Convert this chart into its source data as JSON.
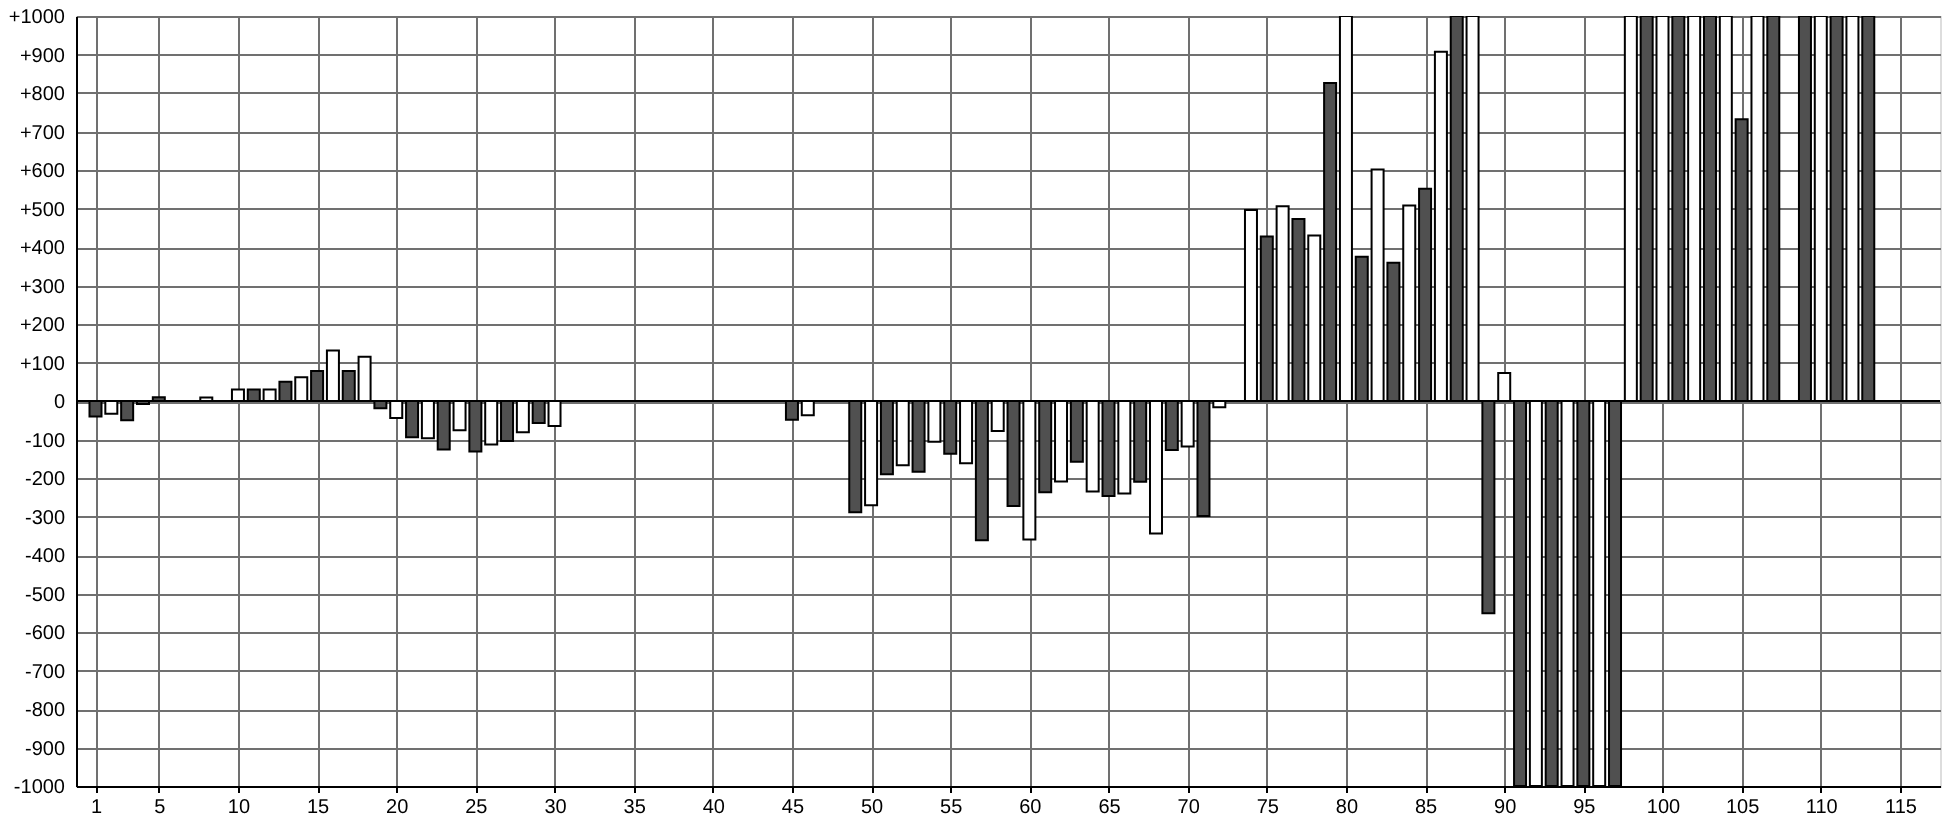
{
  "chart_data": {
    "type": "bar",
    "xlim": [
      0.4,
      116.9
    ],
    "xticks": [
      1,
      5,
      10,
      15,
      20,
      25,
      30,
      35,
      40,
      45,
      50,
      55,
      60,
      65,
      70,
      75,
      80,
      85,
      90,
      95,
      100,
      105,
      110,
      115
    ],
    "ylim": [
      -1000,
      1000
    ],
    "yticks": [
      -1000,
      -900,
      -800,
      -700,
      -600,
      -500,
      -400,
      -300,
      -200,
      -100,
      0,
      {
        "value": 100,
        "label": "+100"
      },
      {
        "value": 200,
        "label": "+200"
      },
      {
        "value": 300,
        "label": "+300"
      },
      {
        "value": 400,
        "label": "+400"
      },
      {
        "value": 500,
        "label": "+500"
      },
      {
        "value": 600,
        "label": "+600"
      },
      {
        "value": 700,
        "label": "+700"
      },
      {
        "value": 800,
        "label": "+800"
      },
      {
        "value": 900,
        "label": "+900"
      },
      {
        "value": 1000,
        "label": "+1000"
      }
    ],
    "grid": true,
    "series": [
      {
        "color": "#505050",
        "x": [
          1,
          3,
          4,
          5,
          11,
          13,
          15,
          17,
          19,
          21,
          23,
          25,
          27,
          29,
          45,
          49,
          51,
          53,
          55,
          57,
          59,
          61,
          63,
          65,
          67,
          69,
          71,
          75,
          77,
          79,
          81,
          83,
          85,
          87,
          89,
          91,
          93,
          95,
          97,
          99,
          101,
          103,
          105,
          107,
          109,
          111,
          113
        ],
        "values": [
          -40,
          -50,
          -8,
          10,
          30,
          50,
          78,
          78,
          -19,
          -94,
          -126,
          -131,
          -104,
          -57,
          -49,
          -289,
          -190,
          -184,
          -137,
          -362,
          -273,
          -237,
          -158,
          -247,
          -210,
          -127,
          -299,
          427,
          473,
          826,
          375,
          359,
          551,
          1000,
          -551,
          -1000,
          -1000,
          -1000,
          -1000,
          1000,
          1000,
          1000,
          732,
          1000,
          1000,
          1000,
          1000
        ]
      },
      {
        "color": "#ffffff",
        "x": [
          2,
          8,
          10,
          12,
          14,
          16,
          18,
          20,
          22,
          24,
          26,
          28,
          30,
          46,
          50,
          52,
          54,
          56,
          58,
          60,
          62,
          64,
          66,
          68,
          70,
          72,
          74,
          76,
          78,
          80,
          82,
          84,
          86,
          88,
          90,
          92,
          94,
          96,
          98,
          100,
          102,
          104,
          106,
          110,
          112
        ],
        "values": [
          -33,
          9,
          30,
          30,
          62,
          131,
          115,
          -44,
          -97,
          -76,
          -113,
          -81,
          -65,
          -37,
          -271,
          -167,
          -106,
          -162,
          -78,
          -360,
          -209,
          -235,
          -240,
          -344,
          -118,
          -16,
          496,
          506,
          430,
          1000,
          601,
          508,
          907,
          1000,
          73,
          -1000,
          -1000,
          -1000,
          1000,
          1000,
          1000,
          1000,
          1000,
          1000,
          1000
        ]
      }
    ]
  }
}
